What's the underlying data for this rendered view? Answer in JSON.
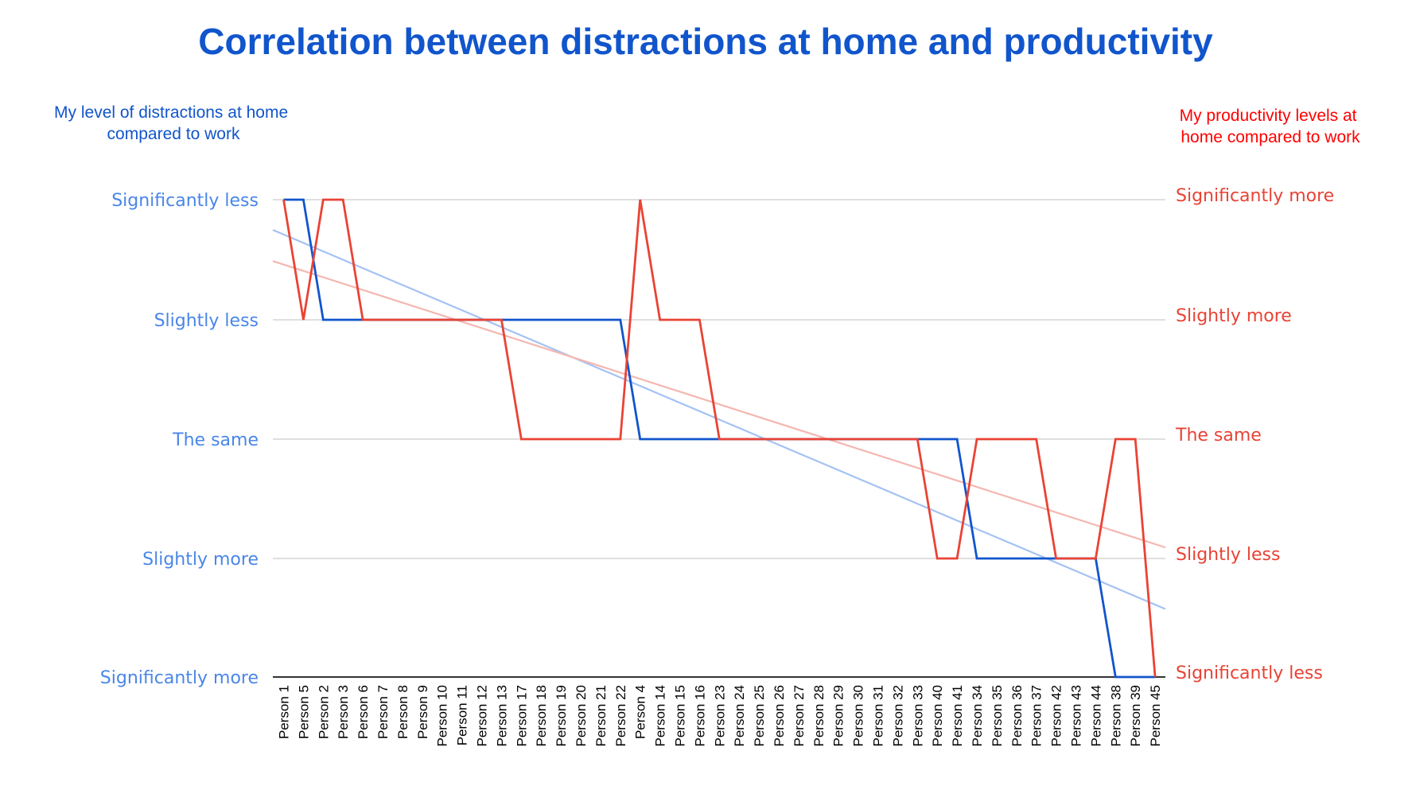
{
  "chart_data": {
    "type": "line",
    "title": "Correlation between distractions at home and productivity",
    "left_axis_title": [
      "My level of distractions at home",
      "compared to work"
    ],
    "right_axis_title": [
      "My productivity levels at",
      "home compared to work"
    ],
    "left_ticks": [
      "Significantly less",
      "Slightly less",
      "The same",
      "Slightly more",
      "Significantly more"
    ],
    "right_ticks": [
      "Significantly more",
      "Slightly more",
      "The same",
      "Slightly less",
      "Significantly less"
    ],
    "categories": [
      "Person 1",
      "Person 5",
      "Person 2",
      "Person 3",
      "Person 6",
      "Person 7",
      "Person 8",
      "Person 9",
      "Person 10",
      "Person 11",
      "Person 12",
      "Person 13",
      "Person 17",
      "Person 18",
      "Person 19",
      "Person 20",
      "Person 21",
      "Person 22",
      "Person 4",
      "Person 14",
      "Person 15",
      "Person 16",
      "Person 23",
      "Person 24",
      "Person 25",
      "Person 26",
      "Person 27",
      "Person 28",
      "Person 29",
      "Person 30",
      "Person 31",
      "Person 32",
      "Person 33",
      "Person 40",
      "Person 41",
      "Person 34",
      "Person 35",
      "Person 36",
      "Person 37",
      "Person 42",
      "Person 43",
      "Person 44",
      "Person 38",
      "Person 39",
      "Person 45"
    ],
    "series": [
      {
        "axis": "left",
        "values": [
          4,
          4,
          3,
          3,
          3,
          3,
          3,
          3,
          3,
          3,
          3,
          3,
          3,
          3,
          3,
          3,
          3,
          3,
          2,
          2,
          2,
          2,
          2,
          2,
          2,
          2,
          2,
          2,
          2,
          2,
          2,
          2,
          2,
          2,
          2,
          1,
          1,
          1,
          1,
          1,
          1,
          1,
          0,
          0,
          0
        ],
        "trendline": [
          3.71,
          0.61
        ]
      },
      {
        "axis": "right",
        "values": [
          4,
          3,
          4,
          4,
          3,
          3,
          3,
          3,
          3,
          3,
          3,
          3,
          2,
          2,
          2,
          2,
          2,
          2,
          4,
          3,
          3,
          3,
          2,
          2,
          2,
          2,
          2,
          2,
          2,
          2,
          2,
          2,
          2,
          1,
          1,
          2,
          2,
          2,
          2,
          1,
          1,
          1,
          2,
          2,
          0
        ],
        "trendline": [
          3.46,
          1.12
        ]
      }
    ],
    "ylim": [
      0,
      4
    ],
    "grid": true,
    "colors": {
      "title": "#1155cc",
      "left_axis_title": "#1155cc",
      "left_ticks": "#4a86e8",
      "right_axis_title": "#ff0000",
      "right_ticks": "#e84335",
      "left_series": "#1155cc",
      "right_series": "#ea4335",
      "left_trend": "#a4c2f4",
      "right_trend": "#f4b7b0",
      "grid": "#cccccc",
      "baseline": "#333333"
    }
  }
}
